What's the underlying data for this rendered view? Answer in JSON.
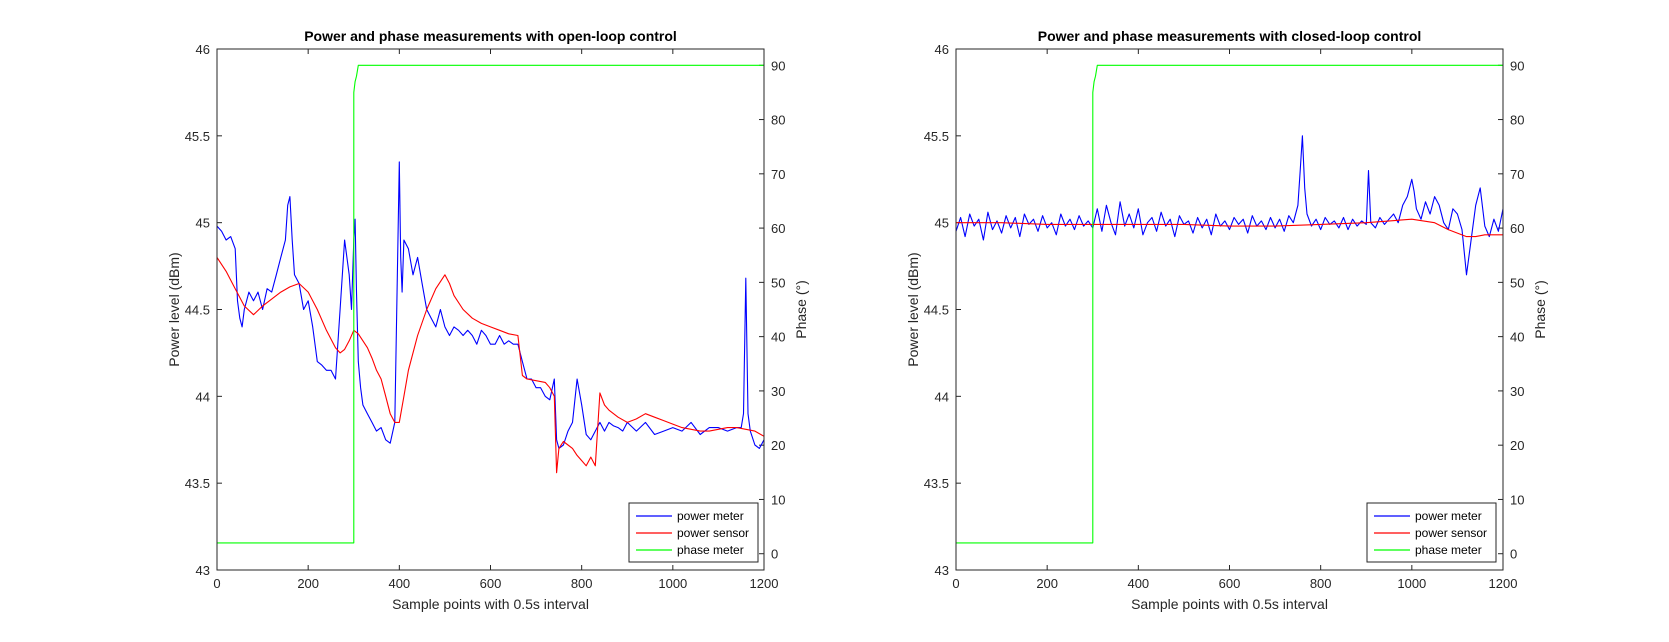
{
  "chart_data": [
    {
      "type": "line",
      "title": "Power and phase measurements with open-loop control",
      "xlabel": "Sample points with 0.5s interval",
      "ylabel": "Power level (dBm)",
      "y2label": "Phase (°)",
      "xlim": [
        0,
        1200
      ],
      "ylim": [
        43,
        46
      ],
      "y2lim": [
        -3,
        93
      ],
      "xticks": [
        0,
        200,
        400,
        600,
        800,
        1000,
        1200
      ],
      "yticks": [
        43,
        43.5,
        44,
        44.5,
        45,
        45.5,
        46
      ],
      "yticklabels": [
        "43",
        "43.5",
        "44",
        "44.5",
        "45",
        "45.5",
        "46"
      ],
      "y2ticks": [
        0,
        10,
        20,
        30,
        40,
        50,
        60,
        70,
        80,
        90
      ],
      "legend_position": "bottom-right",
      "series": [
        {
          "name": "power meter",
          "color": "#0000ff",
          "axis": "left",
          "x": [
            0,
            10,
            20,
            30,
            40,
            45,
            50,
            55,
            60,
            70,
            80,
            90,
            100,
            110,
            120,
            130,
            140,
            150,
            155,
            160,
            165,
            170,
            180,
            190,
            200,
            210,
            220,
            230,
            240,
            250,
            260,
            270,
            280,
            290,
            295,
            300,
            303,
            306,
            310,
            315,
            320,
            330,
            340,
            350,
            360,
            370,
            380,
            390,
            400,
            403,
            406,
            410,
            420,
            430,
            440,
            450,
            460,
            470,
            480,
            490,
            500,
            510,
            520,
            530,
            540,
            550,
            560,
            570,
            580,
            590,
            600,
            610,
            620,
            630,
            640,
            650,
            660,
            670,
            680,
            690,
            700,
            710,
            720,
            730,
            740,
            745,
            750,
            760,
            770,
            780,
            790,
            800,
            810,
            820,
            830,
            840,
            850,
            860,
            870,
            880,
            890,
            900,
            920,
            940,
            960,
            980,
            1000,
            1020,
            1040,
            1060,
            1080,
            1100,
            1120,
            1140,
            1150,
            1155,
            1160,
            1165,
            1170,
            1180,
            1190,
            1200
          ],
          "y": [
            44.98,
            44.95,
            44.9,
            44.92,
            44.85,
            44.55,
            44.45,
            44.4,
            44.5,
            44.6,
            44.55,
            44.6,
            44.5,
            44.62,
            44.6,
            44.7,
            44.8,
            44.9,
            45.1,
            45.15,
            44.9,
            44.7,
            44.65,
            44.5,
            44.55,
            44.4,
            44.2,
            44.18,
            44.15,
            44.15,
            44.1,
            44.5,
            44.9,
            44.7,
            44.5,
            44.9,
            45.02,
            44.6,
            44.2,
            44.05,
            43.95,
            43.9,
            43.85,
            43.8,
            43.82,
            43.75,
            43.73,
            43.85,
            45.35,
            44.8,
            44.6,
            44.9,
            44.85,
            44.7,
            44.8,
            44.65,
            44.5,
            44.45,
            44.4,
            44.5,
            44.4,
            44.35,
            44.4,
            44.38,
            44.35,
            44.38,
            44.35,
            44.3,
            44.38,
            44.35,
            44.3,
            44.3,
            44.35,
            44.3,
            44.32,
            44.3,
            44.3,
            44.2,
            44.1,
            44.1,
            44.05,
            44.05,
            44.0,
            43.98,
            44.1,
            43.75,
            43.7,
            43.72,
            43.8,
            43.85,
            44.1,
            43.95,
            43.78,
            43.75,
            43.8,
            43.85,
            43.8,
            43.85,
            43.83,
            43.82,
            43.8,
            43.85,
            43.8,
            43.85,
            43.78,
            43.8,
            43.82,
            43.8,
            43.85,
            43.78,
            43.82,
            43.82,
            43.8,
            43.82,
            43.82,
            43.9,
            44.68,
            43.9,
            43.8,
            43.72,
            43.7,
            43.75
          ]
        },
        {
          "name": "power sensor",
          "color": "#ff0000",
          "axis": "left",
          "x": [
            0,
            20,
            40,
            60,
            80,
            100,
            120,
            140,
            160,
            180,
            200,
            220,
            240,
            260,
            270,
            280,
            290,
            300,
            310,
            320,
            330,
            340,
            350,
            360,
            370,
            380,
            390,
            400,
            410,
            420,
            440,
            460,
            480,
            500,
            510,
            520,
            540,
            560,
            580,
            600,
            620,
            640,
            660,
            670,
            680,
            700,
            720,
            730,
            740,
            745,
            750,
            760,
            770,
            780,
            790,
            800,
            810,
            820,
            830,
            840,
            850,
            860,
            880,
            900,
            920,
            940,
            960,
            980,
            1000,
            1020,
            1040,
            1060,
            1080,
            1100,
            1120,
            1140,
            1160,
            1180,
            1200
          ],
          "y": [
            44.8,
            44.72,
            44.62,
            44.52,
            44.47,
            44.52,
            44.56,
            44.6,
            44.63,
            44.65,
            44.6,
            44.5,
            44.38,
            44.28,
            44.25,
            44.27,
            44.32,
            44.38,
            44.36,
            44.32,
            44.28,
            44.22,
            44.15,
            44.1,
            44.0,
            43.9,
            43.85,
            43.85,
            44.0,
            44.15,
            44.35,
            44.5,
            44.62,
            44.7,
            44.65,
            44.58,
            44.5,
            44.45,
            44.42,
            44.4,
            44.38,
            44.36,
            44.35,
            44.12,
            44.1,
            44.09,
            44.08,
            44.05,
            44.0,
            43.56,
            43.7,
            43.74,
            43.72,
            43.7,
            43.66,
            43.63,
            43.6,
            43.65,
            43.6,
            44.02,
            43.95,
            43.92,
            43.88,
            43.85,
            43.87,
            43.9,
            43.88,
            43.86,
            43.84,
            43.82,
            43.81,
            43.8,
            43.8,
            43.81,
            43.82,
            43.82,
            43.81,
            43.8,
            43.77
          ]
        },
        {
          "name": "phase meter",
          "color": "#00ff00",
          "axis": "right",
          "x": [
            0,
            300,
            300,
            303,
            306,
            310,
            1200
          ],
          "y": [
            2,
            2,
            85,
            87,
            88,
            90,
            90
          ]
        }
      ]
    },
    {
      "type": "line",
      "title": "Power and phase measurements with closed-loop control",
      "xlabel": "Sample points with 0.5s interval",
      "ylabel": "Power level (dBm)",
      "y2label": "Phase (°)",
      "xlim": [
        0,
        1200
      ],
      "ylim": [
        43,
        46
      ],
      "y2lim": [
        -3,
        93
      ],
      "xticks": [
        0,
        200,
        400,
        600,
        800,
        1000,
        1200
      ],
      "yticks": [
        43,
        43.5,
        44,
        44.5,
        45,
        45.5,
        46
      ],
      "yticklabels": [
        "43",
        "43.5",
        "44",
        "44.5",
        "45",
        "45.5",
        "46"
      ],
      "y2ticks": [
        0,
        10,
        20,
        30,
        40,
        50,
        60,
        70,
        80,
        90
      ],
      "legend_position": "bottom-right",
      "series": [
        {
          "name": "power meter",
          "color": "#0000ff",
          "axis": "left",
          "x": [
            0,
            10,
            20,
            30,
            40,
            50,
            60,
            70,
            80,
            90,
            100,
            110,
            120,
            130,
            140,
            150,
            160,
            170,
            180,
            190,
            200,
            210,
            220,
            230,
            240,
            250,
            260,
            270,
            280,
            290,
            300,
            310,
            320,
            330,
            340,
            350,
            360,
            370,
            380,
            390,
            400,
            410,
            420,
            430,
            440,
            450,
            460,
            470,
            480,
            490,
            500,
            510,
            520,
            530,
            540,
            550,
            560,
            570,
            580,
            590,
            600,
            610,
            620,
            630,
            640,
            650,
            660,
            670,
            680,
            690,
            700,
            710,
            720,
            730,
            740,
            750,
            755,
            760,
            765,
            770,
            780,
            790,
            800,
            810,
            820,
            830,
            840,
            850,
            860,
            870,
            880,
            890,
            900,
            905,
            910,
            920,
            930,
            940,
            950,
            960,
            970,
            980,
            990,
            1000,
            1005,
            1010,
            1020,
            1030,
            1040,
            1050,
            1060,
            1070,
            1080,
            1090,
            1100,
            1110,
            1120,
            1130,
            1140,
            1150,
            1160,
            1170,
            1180,
            1190,
            1200
          ],
          "y": [
            44.95,
            45.03,
            44.92,
            45.05,
            44.98,
            45.02,
            44.9,
            45.06,
            44.96,
            45.01,
            44.94,
            45.04,
            44.97,
            45.03,
            44.92,
            45.05,
            44.99,
            45.02,
            44.95,
            45.04,
            44.97,
            45.0,
            44.93,
            45.05,
            44.98,
            45.02,
            44.96,
            45.04,
            44.98,
            45.01,
            44.97,
            45.08,
            44.95,
            45.1,
            45.0,
            44.93,
            45.12,
            44.98,
            45.05,
            44.97,
            45.08,
            44.93,
            45.0,
            45.03,
            44.95,
            45.06,
            44.98,
            45.02,
            44.92,
            45.04,
            44.99,
            45.01,
            44.94,
            45.03,
            44.97,
            45.02,
            44.93,
            45.05,
            44.98,
            45.01,
            44.96,
            45.03,
            44.99,
            45.02,
            44.94,
            45.04,
            44.98,
            45.01,
            44.96,
            45.03,
            44.97,
            45.02,
            44.95,
            45.04,
            45.0,
            45.1,
            45.3,
            45.5,
            45.2,
            45.05,
            44.98,
            45.02,
            44.96,
            45.03,
            44.99,
            45.01,
            44.97,
            45.03,
            44.96,
            45.02,
            44.98,
            45.01,
            44.99,
            45.3,
            45.0,
            44.97,
            45.03,
            44.99,
            45.02,
            45.05,
            45.0,
            45.1,
            45.15,
            45.25,
            45.18,
            45.08,
            45.02,
            45.12,
            45.05,
            45.15,
            45.1,
            45.0,
            44.96,
            45.08,
            45.05,
            44.96,
            44.7,
            44.9,
            45.1,
            45.2,
            44.98,
            44.92,
            45.02,
            44.95,
            45.08
          ]
        },
        {
          "name": "power sensor",
          "color": "#ff0000",
          "axis": "left",
          "x": [
            0,
            100,
            200,
            300,
            400,
            500,
            600,
            700,
            800,
            900,
            1000,
            1050,
            1080,
            1100,
            1120,
            1140,
            1160,
            1200
          ],
          "y": [
            45.0,
            45.0,
            44.99,
            44.99,
            44.99,
            44.99,
            44.98,
            44.98,
            44.99,
            45.0,
            45.02,
            45.0,
            44.96,
            44.94,
            44.92,
            44.92,
            44.93,
            44.93
          ]
        },
        {
          "name": "phase meter",
          "color": "#00ff00",
          "axis": "right",
          "x": [
            0,
            300,
            300,
            303,
            306,
            310,
            1200
          ],
          "y": [
            2,
            2,
            85,
            87,
            88,
            90,
            90
          ]
        }
      ]
    }
  ]
}
